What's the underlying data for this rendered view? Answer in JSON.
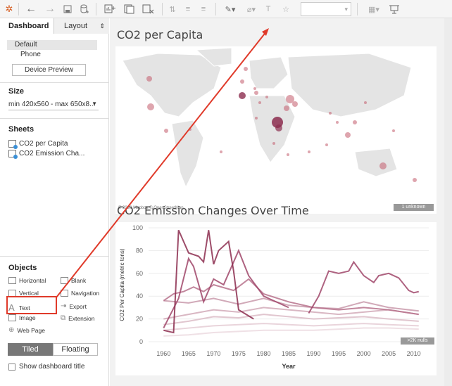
{
  "toolbar": {
    "icons": [
      "tableau-logo-icon",
      "back-arrow-icon",
      "forward-arrow-icon",
      "save-icon",
      "add-datasource-icon",
      "new-worksheet-icon",
      "duplicate-icon",
      "clear-icon",
      "swap-icon",
      "sort-asc-icon",
      "sort-desc-icon",
      "highlight-icon",
      "group-icon",
      "label-icon",
      "pin-icon",
      "fit-dropdown",
      "show-me-icon",
      "presentation-icon"
    ]
  },
  "sidebar": {
    "tabs": {
      "active": "Dashboard",
      "inactive": "Layout"
    },
    "devices": {
      "default": "Default",
      "phone": "Phone",
      "preview_button": "Device Preview"
    },
    "size": {
      "heading": "Size",
      "value": "min 420x560 - max 650x8..."
    },
    "sheets": {
      "heading": "Sheets",
      "items": [
        "CO2 per Capita",
        "CO2 Emission Cha..."
      ]
    },
    "objects": {
      "heading": "Objects",
      "items": [
        "Horizontal",
        "Blank",
        "Vertical",
        "Navigation",
        "Text",
        "Export",
        "Image",
        "Extension",
        "Web Page"
      ]
    },
    "layout_toggle": {
      "tiled": "Tiled",
      "floating": "Floating"
    },
    "show_title": "Show dashboard title"
  },
  "map": {
    "title": "CO2 per Capita",
    "attribution": "© 2020 Mapbox © OpenStreetMap",
    "badge": "1 unknown"
  },
  "chart": {
    "title": "CO2 Emission Changes Over Time",
    "badge": ">2K nulls"
  },
  "colors": {
    "accent": "#e03a2a",
    "series": "#8c2d4f",
    "bubble": "#c25b6b"
  },
  "chart_data": {
    "type": "line",
    "title": "CO2 Emission Changes Over Time",
    "xlabel": "Year",
    "ylabel": "CO2 Per Capita (metric tons)",
    "xlim": [
      1957,
      2013
    ],
    "ylim": [
      0,
      100
    ],
    "xticks": [
      1960,
      1965,
      1970,
      1975,
      1980,
      1985,
      1990,
      1995,
      2000,
      2005,
      2010
    ],
    "yticks": [
      0,
      20,
      40,
      60,
      80,
      100
    ],
    "series": [
      {
        "x": [
          1960,
          1962,
          1963,
          1965,
          1967,
          1968,
          1969,
          1970,
          1971,
          1973,
          1974,
          1975,
          1978
        ],
        "values": [
          10,
          8,
          98,
          78,
          75,
          70,
          98,
          68,
          80,
          88,
          62,
          28,
          20
        ],
        "color": "#8c2d4f"
      },
      {
        "x": [
          1960,
          1963,
          1965,
          1966,
          1968,
          1970,
          1972,
          1975,
          1977,
          1980,
          1985
        ],
        "values": [
          12,
          38,
          73,
          66,
          35,
          55,
          50,
          80,
          58,
          40,
          30
        ],
        "color": "#a0476a"
      },
      {
        "x": [
          1989,
          1991,
          1993,
          1995,
          1997,
          1998,
          2000,
          2002,
          2003,
          2005,
          2007,
          2009,
          2010,
          2011
        ],
        "values": [
          25,
          40,
          62,
          60,
          62,
          70,
          58,
          52,
          58,
          60,
          56,
          45,
          43,
          44
        ],
        "color": "#a0476a"
      },
      {
        "x": [
          1960,
          1962,
          1964,
          1966,
          1968,
          1970,
          1974,
          1977,
          1980,
          1985,
          1990,
          1995,
          2000,
          2005,
          2011
        ],
        "values": [
          36,
          42,
          44,
          48,
          44,
          50,
          45,
          55,
          42,
          35,
          30,
          28,
          30,
          28,
          24
        ],
        "color": "#b7728c"
      },
      {
        "x": [
          1960,
          1965,
          1970,
          1975,
          1980,
          1985,
          1990,
          1995,
          2000,
          2005,
          2011
        ],
        "values": [
          36,
          34,
          38,
          33,
          38,
          32,
          30,
          29,
          35,
          30,
          27
        ],
        "color": "#c99aab"
      },
      {
        "x": [
          1960,
          1965,
          1970,
          1975,
          1980,
          1985,
          1990,
          1995,
          2000,
          2005,
          2011
        ],
        "values": [
          20,
          24,
          28,
          26,
          30,
          28,
          26,
          24,
          26,
          28,
          24
        ],
        "color": "#d2aab8"
      },
      {
        "x": [
          1960,
          1965,
          1970,
          1975,
          1980,
          1985,
          1990,
          1995,
          2000,
          2005,
          2011
        ],
        "values": [
          15,
          18,
          22,
          21,
          24,
          22,
          20,
          21,
          22,
          20,
          18
        ],
        "color": "#dcbcc7"
      },
      {
        "x": [
          1960,
          1965,
          1970,
          1975,
          1980,
          1985,
          1990,
          1995,
          2000,
          2005,
          2011
        ],
        "values": [
          10,
          12,
          14,
          15,
          16,
          15,
          14,
          15,
          16,
          15,
          14
        ],
        "color": "#e5cdd5"
      },
      {
        "x": [
          1960,
          1965,
          1970,
          1975,
          1980,
          1985,
          1990,
          1995,
          2000,
          2005,
          2011
        ],
        "values": [
          5,
          6,
          8,
          9,
          10,
          10,
          10,
          11,
          12,
          12,
          11
        ],
        "color": "#ecdbe1"
      }
    ]
  }
}
